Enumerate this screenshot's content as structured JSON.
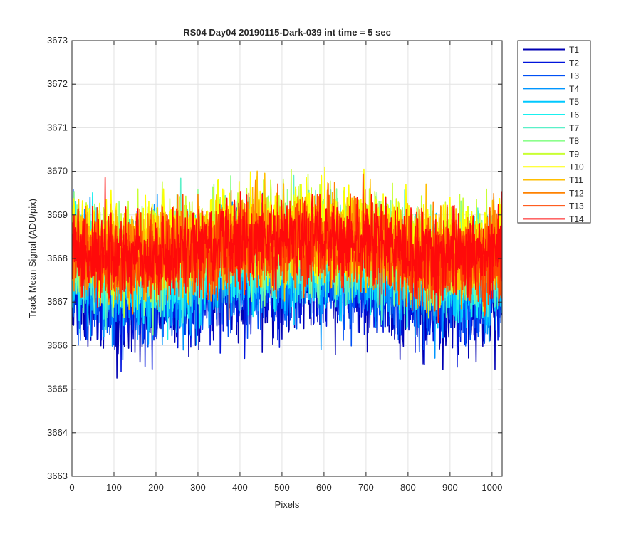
{
  "chart_data": {
    "type": "line",
    "title": "RS04 Day04 20190115-Dark-039 int time = 5 sec",
    "xlabel": "Pixels",
    "ylabel": "Track Mean Signal (ADU/pix)",
    "xlim": [
      0,
      1024
    ],
    "ylim": [
      3663,
      3673
    ],
    "x_ticks": [
      "0",
      "100",
      "200",
      "300",
      "400",
      "500",
      "600",
      "700",
      "800",
      "900",
      "1000"
    ],
    "y_ticks": [
      "3663",
      "3664",
      "3665",
      "3666",
      "3667",
      "3668",
      "3669",
      "3670",
      "3671",
      "3672",
      "3673"
    ],
    "grid": true,
    "legend_position": "outside-top-right",
    "series_note": "Each series holds 1024 noisy per-pixel values; values listed every 32 pixels",
    "x": [
      0,
      32,
      64,
      96,
      128,
      160,
      192,
      224,
      256,
      288,
      320,
      352,
      384,
      416,
      448,
      480,
      512,
      544,
      576,
      608,
      640,
      672,
      704,
      736,
      768,
      800,
      832,
      864,
      896,
      928,
      960,
      992,
      1023
    ],
    "series": [
      {
        "name": "T1",
        "color": "#0000b3",
        "values": [
          3667.3,
          3667.0,
          3667.1,
          3666.8,
          3666.9,
          3667.0,
          3666.9,
          3667.1,
          3667.2,
          3667.1,
          3667.2,
          3667.3,
          3667.4,
          3667.3,
          3667.5,
          3667.4,
          3667.4,
          3667.5,
          3667.5,
          3667.6,
          3667.5,
          3667.4,
          3667.5,
          3667.4,
          3667.3,
          3667.2,
          3667.1,
          3667.0,
          3667.0,
          3667.1,
          3667.0,
          3667.1,
          3667.2
        ]
      },
      {
        "name": "T2",
        "color": "#0014dc",
        "values": [
          3667.4,
          3667.2,
          3667.2,
          3667.0,
          3667.1,
          3667.1,
          3667.0,
          3667.2,
          3667.3,
          3667.2,
          3667.3,
          3667.4,
          3667.5,
          3667.4,
          3667.6,
          3667.5,
          3667.5,
          3667.6,
          3667.6,
          3667.7,
          3667.6,
          3667.5,
          3667.6,
          3667.5,
          3667.4,
          3667.3,
          3667.2,
          3667.1,
          3667.1,
          3667.2,
          3667.1,
          3667.2,
          3667.3
        ]
      },
      {
        "name": "T3",
        "color": "#0050f5",
        "values": [
          3667.6,
          3667.4,
          3667.4,
          3667.2,
          3667.3,
          3667.3,
          3667.2,
          3667.4,
          3667.5,
          3667.4,
          3667.5,
          3667.6,
          3667.6,
          3667.6,
          3667.7,
          3667.6,
          3667.6,
          3667.7,
          3667.7,
          3667.8,
          3667.7,
          3667.6,
          3667.7,
          3667.6,
          3667.5,
          3667.4,
          3667.4,
          3667.3,
          3667.3,
          3667.3,
          3667.3,
          3667.3,
          3667.4
        ]
      },
      {
        "name": "T4",
        "color": "#0096ff",
        "values": [
          3667.8,
          3667.6,
          3667.6,
          3667.4,
          3667.5,
          3667.5,
          3667.4,
          3667.6,
          3667.6,
          3667.6,
          3667.7,
          3667.8,
          3667.8,
          3667.7,
          3667.9,
          3667.8,
          3667.8,
          3667.9,
          3667.9,
          3667.9,
          3667.9,
          3667.8,
          3667.8,
          3667.8,
          3667.7,
          3667.6,
          3667.5,
          3667.5,
          3667.4,
          3667.5,
          3667.4,
          3667.5,
          3667.6
        ]
      },
      {
        "name": "T5",
        "color": "#00c8ff",
        "values": [
          3667.9,
          3667.7,
          3667.7,
          3667.6,
          3667.6,
          3667.7,
          3667.6,
          3667.7,
          3667.8,
          3667.7,
          3667.8,
          3667.9,
          3667.9,
          3667.9,
          3668.0,
          3667.9,
          3667.9,
          3668.0,
          3668.0,
          3668.1,
          3668.0,
          3667.9,
          3668.0,
          3667.9,
          3667.8,
          3667.7,
          3667.7,
          3667.6,
          3667.6,
          3667.7,
          3667.6,
          3667.7,
          3667.7
        ]
      },
      {
        "name": "T6",
        "color": "#19f0f0",
        "values": [
          3668.0,
          3667.8,
          3667.8,
          3667.7,
          3667.7,
          3667.8,
          3667.7,
          3667.8,
          3667.9,
          3667.8,
          3667.9,
          3668.0,
          3668.0,
          3668.0,
          3668.1,
          3668.0,
          3668.0,
          3668.1,
          3668.1,
          3668.2,
          3668.1,
          3668.0,
          3668.1,
          3668.0,
          3667.9,
          3667.8,
          3667.8,
          3667.7,
          3667.7,
          3667.8,
          3667.7,
          3667.8,
          3667.8
        ]
      },
      {
        "name": "T7",
        "color": "#5af0c8",
        "values": [
          3668.1,
          3667.9,
          3667.9,
          3667.8,
          3667.8,
          3667.9,
          3667.8,
          3667.9,
          3668.0,
          3667.9,
          3668.0,
          3668.1,
          3668.1,
          3668.1,
          3668.2,
          3668.1,
          3668.1,
          3668.2,
          3668.2,
          3668.3,
          3668.2,
          3668.1,
          3668.2,
          3668.1,
          3668.0,
          3667.9,
          3667.9,
          3667.8,
          3667.8,
          3667.9,
          3667.8,
          3667.9,
          3667.9
        ]
      },
      {
        "name": "T8",
        "color": "#8cff8c",
        "values": [
          3668.3,
          3668.1,
          3668.1,
          3668.0,
          3668.0,
          3668.1,
          3668.0,
          3668.1,
          3668.2,
          3668.1,
          3668.2,
          3668.3,
          3668.3,
          3668.3,
          3668.4,
          3668.3,
          3668.3,
          3668.4,
          3668.4,
          3668.5,
          3668.4,
          3668.3,
          3668.4,
          3668.3,
          3668.2,
          3668.1,
          3668.1,
          3668.0,
          3668.0,
          3668.1,
          3668.0,
          3668.1,
          3668.1
        ]
      },
      {
        "name": "T9",
        "color": "#c8ff32",
        "values": [
          3668.5,
          3668.3,
          3668.3,
          3668.2,
          3668.2,
          3668.3,
          3668.2,
          3668.3,
          3668.4,
          3668.3,
          3668.4,
          3668.5,
          3668.5,
          3668.5,
          3668.6,
          3668.5,
          3668.5,
          3668.6,
          3668.6,
          3668.7,
          3668.6,
          3668.5,
          3668.6,
          3668.5,
          3668.4,
          3668.3,
          3668.3,
          3668.2,
          3668.2,
          3668.3,
          3668.2,
          3668.3,
          3668.3
        ]
      },
      {
        "name": "T10",
        "color": "#ffff00",
        "values": [
          3668.6,
          3668.4,
          3668.4,
          3668.3,
          3668.3,
          3668.4,
          3668.3,
          3668.4,
          3668.5,
          3668.4,
          3668.5,
          3668.6,
          3668.6,
          3668.6,
          3668.7,
          3668.6,
          3668.6,
          3668.7,
          3668.7,
          3668.8,
          3668.7,
          3668.6,
          3668.7,
          3668.6,
          3668.5,
          3668.4,
          3668.4,
          3668.3,
          3668.3,
          3668.4,
          3668.3,
          3668.4,
          3668.4
        ]
      },
      {
        "name": "T11",
        "color": "#ffbe00",
        "values": [
          3668.4,
          3668.2,
          3668.2,
          3668.1,
          3668.1,
          3668.2,
          3668.1,
          3668.2,
          3668.3,
          3668.2,
          3668.3,
          3668.4,
          3668.4,
          3668.4,
          3668.5,
          3668.4,
          3668.4,
          3668.5,
          3668.5,
          3668.6,
          3668.5,
          3668.4,
          3668.5,
          3668.4,
          3668.3,
          3668.2,
          3668.2,
          3668.1,
          3668.1,
          3668.2,
          3668.1,
          3668.2,
          3668.2
        ]
      },
      {
        "name": "T12",
        "color": "#ff8200",
        "values": [
          3668.3,
          3668.1,
          3668.1,
          3668.0,
          3668.0,
          3668.1,
          3668.0,
          3668.1,
          3668.2,
          3668.1,
          3668.2,
          3668.3,
          3668.3,
          3668.3,
          3668.4,
          3668.3,
          3668.3,
          3668.4,
          3668.4,
          3668.5,
          3668.4,
          3668.3,
          3668.4,
          3668.3,
          3668.2,
          3668.1,
          3668.1,
          3668.0,
          3668.0,
          3668.1,
          3668.0,
          3668.1,
          3668.1
        ]
      },
      {
        "name": "T13",
        "color": "#ff4600",
        "values": [
          3668.2,
          3668.0,
          3668.0,
          3667.9,
          3667.9,
          3668.0,
          3667.9,
          3668.0,
          3668.1,
          3668.0,
          3668.1,
          3668.2,
          3668.2,
          3668.2,
          3668.3,
          3668.2,
          3668.2,
          3668.3,
          3668.3,
          3668.4,
          3668.3,
          3668.2,
          3668.3,
          3668.2,
          3668.1,
          3668.0,
          3668.0,
          3667.9,
          3667.9,
          3668.0,
          3667.9,
          3668.0,
          3668.0
        ]
      },
      {
        "name": "T14",
        "color": "#ff0a0a",
        "values": [
          3668.3,
          3668.1,
          3668.1,
          3668.0,
          3668.0,
          3668.1,
          3668.0,
          3668.1,
          3668.2,
          3668.2,
          3668.3,
          3668.4,
          3668.4,
          3668.3,
          3668.5,
          3668.4,
          3668.4,
          3668.5,
          3668.5,
          3668.6,
          3668.5,
          3668.4,
          3668.5,
          3668.3,
          3668.2,
          3668.1,
          3668.1,
          3668.0,
          3668.0,
          3668.1,
          3668.0,
          3668.1,
          3668.1
        ]
      }
    ]
  }
}
